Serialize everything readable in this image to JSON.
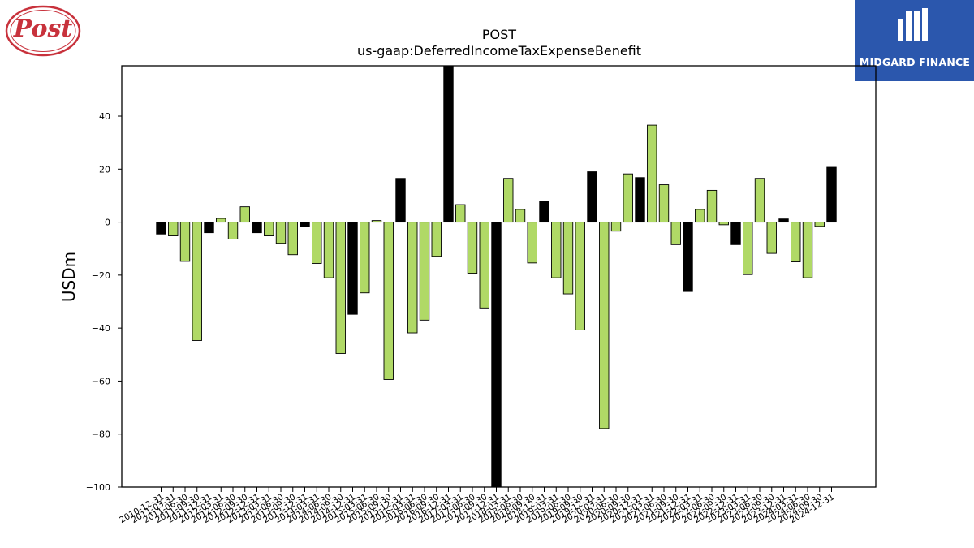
{
  "logos": {
    "left_text": "Post",
    "right_text": "MIDGARD FINANCE",
    "right_bg": "#2b57ad",
    "left_color": "#c8323c"
  },
  "chart_data": {
    "type": "bar",
    "title": "POST",
    "subtitle": "us-gaap:DeferredIncomeTaxExpenseBenefit",
    "xlabel": "",
    "ylabel": "USDm",
    "ylim": [
      -100,
      59
    ],
    "yticks": [
      -100,
      -80,
      -60,
      -40,
      -20,
      0,
      20,
      40
    ],
    "grid": false,
    "colors": {
      "annual": "#000000",
      "quarterly": "#b0d966",
      "edge": "#000000"
    },
    "categories": [
      "2010-12-31",
      "2011-03-31",
      "2011-06-30",
      "2011-09-30",
      "2011-12-31",
      "2012-03-31",
      "2012-06-30",
      "2012-09-30",
      "2012-12-31",
      "2013-03-31",
      "2013-06-30",
      "2013-09-30",
      "2013-12-31",
      "2014-03-31",
      "2014-06-30",
      "2014-09-30",
      "2014-12-31",
      "2015-03-31",
      "2015-06-30",
      "2015-09-30",
      "2015-12-31",
      "2016-03-31",
      "2016-06-30",
      "2016-09-30",
      "2016-12-31",
      "2017-03-31",
      "2017-06-30",
      "2017-09-30",
      "2017-12-31",
      "2018-03-31",
      "2018-06-30",
      "2018-09-30",
      "2018-12-31",
      "2019-03-31",
      "2019-06-30",
      "2019-09-30",
      "2019-12-31",
      "2020-03-31",
      "2020-06-30",
      "2020-09-30",
      "2020-12-31",
      "2021-03-31",
      "2021-06-30",
      "2021-09-30",
      "2021-12-31",
      "2022-03-31",
      "2022-06-30",
      "2022-09-30",
      "2022-12-31",
      "2023-03-31",
      "2023-06-30",
      "2023-09-30",
      "2023-12-31",
      "2024-03-31",
      "2024-06-30",
      "2024-09-30",
      "2024-12-31"
    ],
    "values": [
      -4.5,
      -5.2,
      -14.8,
      -44.7,
      -4.0,
      1.4,
      -6.4,
      5.8,
      -4.0,
      -5.2,
      -8.0,
      -12.3,
      -1.8,
      -15.6,
      -21.0,
      -49.6,
      -34.8,
      -26.7,
      0.6,
      -59.4,
      16.5,
      -41.8,
      -37.0,
      -12.9,
      60.0,
      6.6,
      -19.3,
      -32.4,
      -101.0,
      16.5,
      4.8,
      -15.4,
      7.9,
      -21.0,
      -27.1,
      -40.7,
      19.0,
      -77.9,
      -3.4,
      18.2,
      16.8,
      36.6,
      14.1,
      -8.5,
      -26.2,
      4.8,
      12.0,
      -1.0,
      -8.5,
      -19.8,
      16.5,
      -11.8,
      1.2,
      -15.0,
      -21.0,
      -1.6,
      20.7
    ],
    "annual_flags": [
      1,
      0,
      0,
      0,
      1,
      0,
      0,
      0,
      1,
      0,
      0,
      0,
      1,
      0,
      0,
      0,
      1,
      0,
      0,
      0,
      1,
      0,
      0,
      0,
      1,
      0,
      0,
      0,
      1,
      0,
      0,
      0,
      1,
      0,
      0,
      0,
      1,
      0,
      0,
      0,
      1,
      0,
      0,
      0,
      1,
      0,
      0,
      0,
      1,
      0,
      0,
      0,
      1,
      0,
      0,
      0,
      1
    ]
  }
}
